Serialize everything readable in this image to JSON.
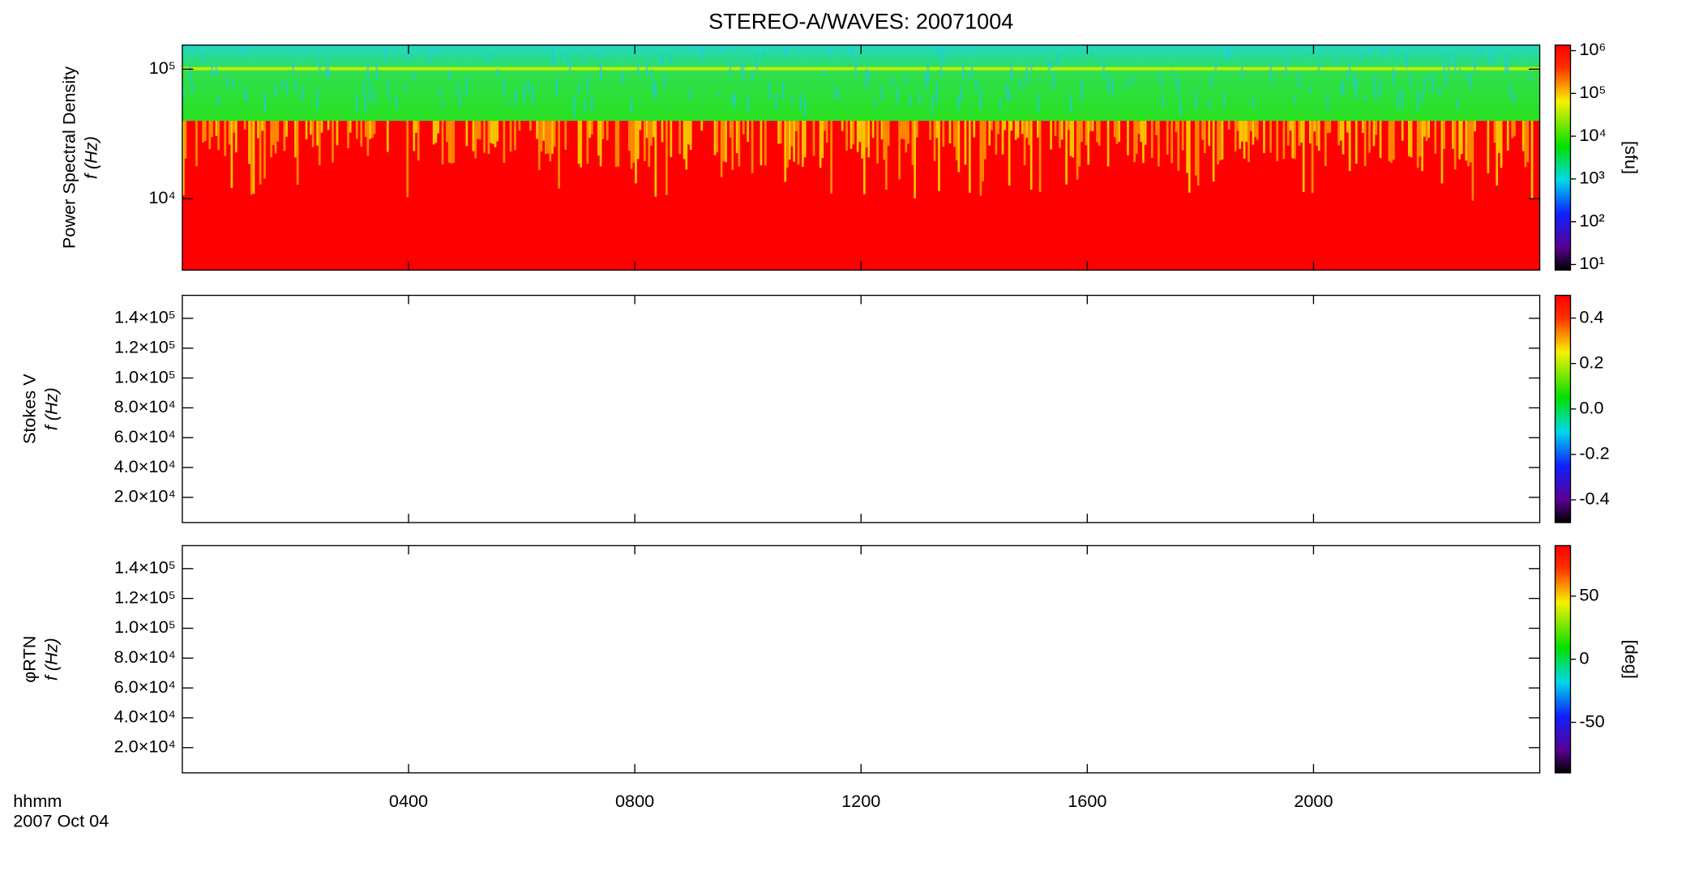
{
  "title": "STEREO-A/WAVES: 20071004",
  "time_axis": {
    "xlim": [
      0,
      24
    ],
    "xticks": [
      {
        "value": 4,
        "label": "0400"
      },
      {
        "value": 8,
        "label": "0800"
      },
      {
        "value": 12,
        "label": "1200"
      },
      {
        "value": 16,
        "label": "1600"
      },
      {
        "value": 20,
        "label": "2000"
      }
    ],
    "label_lines": [
      "hhmm",
      "2007 Oct 04"
    ]
  },
  "chart_data": [
    {
      "type": "heatmap",
      "ylabel": [
        "Power Spectral Density",
        "f (Hz)"
      ],
      "ylog": true,
      "ylim": [
        2810,
        153500
      ],
      "yticks": [
        {
          "value": 10000,
          "label": "10⁴"
        },
        {
          "value": 100000,
          "label": "10⁵"
        }
      ],
      "colorbar": {
        "log": true,
        "lim": [
          7.4,
          1350000
        ],
        "label": "[sfu]",
        "ticks": [
          {
            "value": 10,
            "label": "10¹"
          },
          {
            "value": 100,
            "label": "10²"
          },
          {
            "value": 1000,
            "label": "10³"
          },
          {
            "value": 10000,
            "label": "10⁴"
          },
          {
            "value": 100000,
            "label": "10⁵"
          },
          {
            "value": 1000000,
            "label": "10⁶"
          }
        ]
      }
    },
    {
      "type": "heatmap",
      "ylabel": [
        "Stokes V",
        "f (Hz)"
      ],
      "ylog": false,
      "ylim": [
        3100,
        155400
      ],
      "yticks": [
        {
          "value": 20000,
          "label": "2.0×10⁴"
        },
        {
          "value": 40000,
          "label": "4.0×10⁴"
        },
        {
          "value": 60000,
          "label": "6.0×10⁴"
        },
        {
          "value": 80000,
          "label": "8.0×10⁴"
        },
        {
          "value": 100000,
          "label": "1.0×10⁵"
        },
        {
          "value": 120000,
          "label": "1.2×10⁵"
        },
        {
          "value": 140000,
          "label": "1.4×10⁵"
        }
      ],
      "colorbar": {
        "log": false,
        "lim": [
          -0.5,
          0.5
        ],
        "ticks": [
          {
            "value": -0.4,
            "label": "-0.4"
          },
          {
            "value": -0.2,
            "label": "-0.2"
          },
          {
            "value": 0,
            "label": "0.0"
          },
          0.2,
          0.4
        ]
      }
    },
    {
      "type": "heatmap",
      "ylabel": [
        "φRTN",
        "f (Hz)"
      ],
      "ylog": false,
      "ylim": [
        3100,
        155400
      ],
      "yticks": [
        {
          "value": 20000,
          "label": "2.0×10⁴"
        },
        {
          "value": 40000,
          "label": "4.0×10⁴"
        },
        {
          "value": 60000,
          "label": "6.0×10⁴"
        },
        {
          "value": 80000,
          "label": "8.0×10⁴"
        },
        {
          "value": 100000,
          "label": "1.0×10⁵"
        },
        {
          "value": 120000,
          "label": "1.2×10⁵"
        },
        {
          "value": 140000,
          "label": "1.4×10⁵"
        }
      ],
      "colorbar": {
        "log": false,
        "lim": [
          -90,
          90
        ],
        "label": "[deg]",
        "ticks": [
          -50,
          0,
          50
        ]
      }
    }
  ]
}
